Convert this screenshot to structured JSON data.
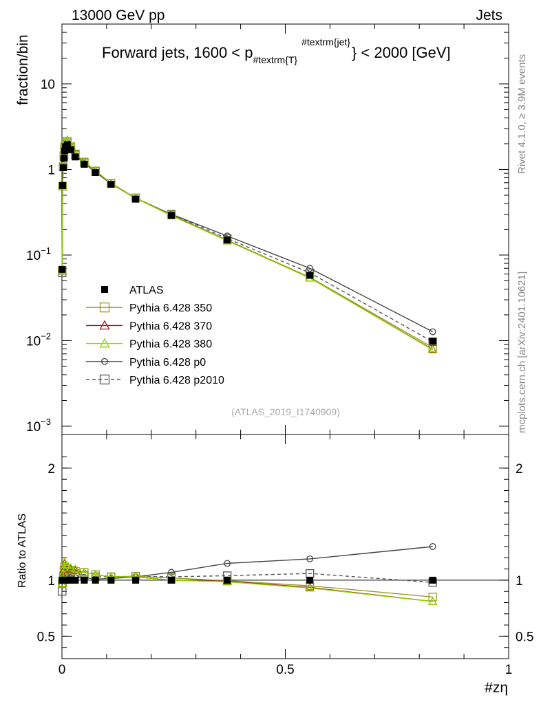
{
  "header": {
    "left": "13000 GeV pp",
    "right": "Jets"
  },
  "side": {
    "rivet": "Rivet 4.1.0, ≥ 3.9M events",
    "mcplots": "mcplots.cern.ch [arXiv:2401.10621]"
  },
  "watermark": "(ATLAS_2019_I1740909)",
  "chart_data": {
    "type": "line",
    "title_parts": {
      "a": "Forward jets, 1600 < p",
      "sub": "#textrm{T}",
      "sup": "#textrm{jet}",
      "b": "} < 2000 [GeV]"
    },
    "xlabel": "#zη",
    "ylabel": "fraction/bin",
    "ratio_ylabel": "Ratio to ATLAS",
    "xlim": [
      0,
      1
    ],
    "ylim": [
      0.0008,
      50
    ],
    "yscale": "log",
    "ratio_ylim": [
      0.3,
      2.3
    ],
    "x_ticks": [
      "0",
      "0.5",
      "1"
    ],
    "y_ticks": [
      {
        "v": 0.001,
        "base": "10",
        "exp": "−3"
      },
      {
        "v": 0.01,
        "base": "10",
        "exp": "−2"
      },
      {
        "v": 0.1,
        "base": "10",
        "exp": "−1"
      },
      {
        "v": 1,
        "base": "1",
        "exp": ""
      },
      {
        "v": 10,
        "base": "10",
        "exp": ""
      }
    ],
    "ratio_ticks": [
      "0.5",
      "1",
      "2"
    ],
    "x": [
      0.0005,
      0.0015,
      0.003,
      0.0045,
      0.006,
      0.008,
      0.012,
      0.02,
      0.03,
      0.05,
      0.075,
      0.11,
      0.165,
      0.245,
      0.37,
      0.555,
      0.83
    ],
    "series": [
      {
        "name": "ATLAS",
        "style": "data",
        "marker": "filled-square",
        "color": "#000000",
        "values": [
          0.068,
          0.65,
          1.05,
          1.35,
          1.65,
          1.85,
          1.95,
          1.7,
          1.4,
          1.15,
          0.92,
          0.67,
          0.45,
          0.29,
          0.15,
          0.058,
          0.0098
        ],
        "ratio": [
          1,
          1,
          1,
          1,
          1,
          1,
          1,
          1,
          1,
          1,
          1,
          1,
          1,
          1,
          1,
          1,
          1
        ]
      },
      {
        "name": "Pythia 6.428 350",
        "style": "solid",
        "marker": "open-square",
        "color": "#9a9a2a",
        "values": [
          0.066,
          0.64,
          1.08,
          1.45,
          1.85,
          2.05,
          2.15,
          1.85,
          1.52,
          1.22,
          0.96,
          0.69,
          0.465,
          0.295,
          0.149,
          0.055,
          0.0083
        ],
        "ratio": [
          0.97,
          0.98,
          1.03,
          1.08,
          1.12,
          1.11,
          1.1,
          1.09,
          1.08,
          1.07,
          1.05,
          1.03,
          1.035,
          1.02,
          0.995,
          0.95,
          0.85
        ]
      },
      {
        "name": "Pythia 6.428 370",
        "style": "solid",
        "marker": "open-triangle",
        "color": "#a01818",
        "values": [
          0.066,
          0.65,
          1.1,
          1.48,
          1.9,
          2.1,
          2.2,
          1.88,
          1.53,
          1.23,
          0.97,
          0.69,
          0.462,
          0.29,
          0.148,
          0.054,
          0.0079
        ],
        "ratio": [
          0.97,
          1.0,
          1.05,
          1.1,
          1.15,
          1.13,
          1.12,
          1.1,
          1.09,
          1.07,
          1.05,
          1.03,
          1.03,
          1.0,
          0.99,
          0.935,
          0.81
        ]
      },
      {
        "name": "Pythia 6.428 380",
        "style": "solid",
        "marker": "open-triangle",
        "color": "#8fd400",
        "values": [
          0.066,
          0.65,
          1.11,
          1.49,
          1.91,
          2.12,
          2.22,
          1.89,
          1.54,
          1.23,
          0.97,
          0.69,
          0.462,
          0.289,
          0.147,
          0.054,
          0.0078
        ],
        "ratio": [
          0.97,
          1.0,
          1.06,
          1.11,
          1.16,
          1.14,
          1.13,
          1.11,
          1.1,
          1.07,
          1.05,
          1.03,
          1.03,
          1.0,
          0.985,
          0.93,
          0.81
        ]
      },
      {
        "name": "Pythia 6.428 p0",
        "style": "solid",
        "marker": "open-circle",
        "color": "#444444",
        "values": [
          0.068,
          0.66,
          1.06,
          1.38,
          1.7,
          1.88,
          1.99,
          1.73,
          1.43,
          1.18,
          0.93,
          0.68,
          0.46,
          0.3,
          0.167,
          0.07,
          0.0127
        ],
        "ratio": [
          1.0,
          1.02,
          1.01,
          1.02,
          1.03,
          1.02,
          1.02,
          1.02,
          1.02,
          1.025,
          1.01,
          1.015,
          1.03,
          1.07,
          1.15,
          1.19,
          1.3
        ]
      },
      {
        "name": "Pythia 6.428 p2010",
        "style": "dashed",
        "marker": "open-square",
        "color": "#555555",
        "values": [
          0.062,
          0.64,
          1.07,
          1.42,
          1.78,
          1.95,
          2.05,
          1.79,
          1.48,
          1.2,
          0.95,
          0.69,
          0.465,
          0.3,
          0.156,
          0.062,
          0.0097
        ],
        "ratio": [
          0.9,
          0.98,
          1.02,
          1.05,
          1.08,
          1.06,
          1.05,
          1.05,
          1.06,
          1.045,
          1.03,
          1.03,
          1.035,
          1.03,
          1.04,
          1.06,
          0.98
        ]
      }
    ]
  }
}
